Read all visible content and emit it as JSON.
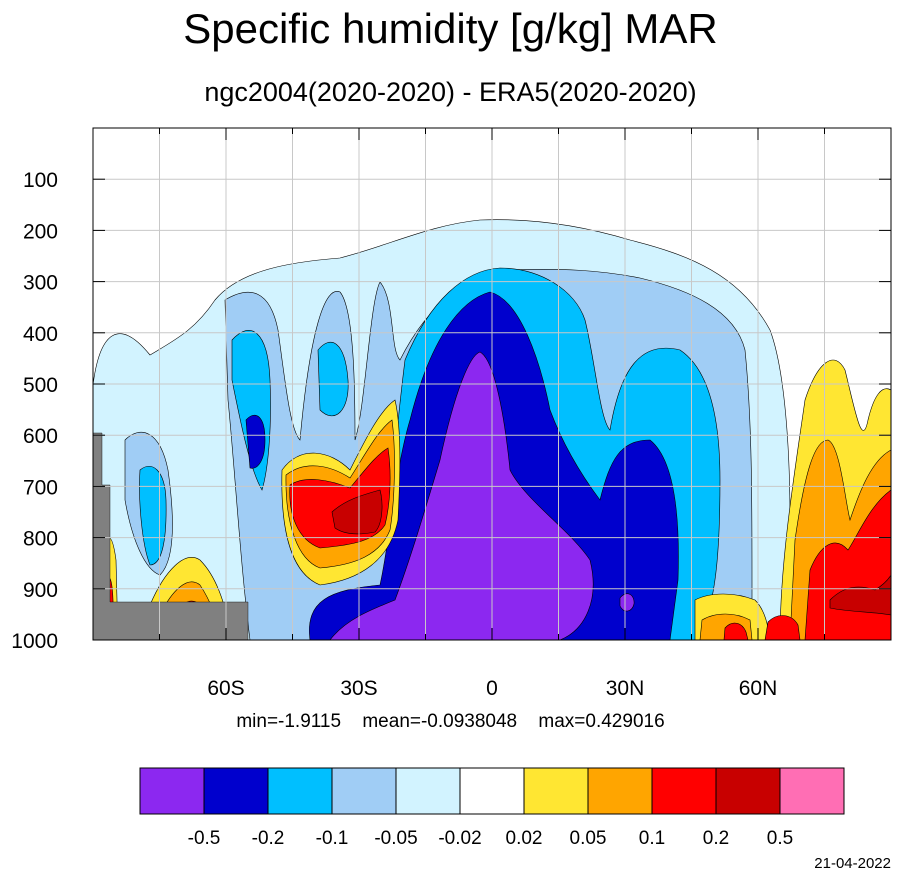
{
  "title": "Specific humidity [g/kg] MAR",
  "subtitle": "ngc2004(2020-2020) - ERA5(2020-2020)",
  "stats": {
    "min_text": "min=-1.9115",
    "mean_text": "mean=-0.0938048",
    "max_text": "max=0.429016"
  },
  "date": "21-04-2022",
  "colors": {
    "land_mask": "#808080",
    "grid": "#c8c8c8",
    "fill_levels": [
      "#8c28f0",
      "#0000cd",
      "#00bfff",
      "#a0cdf5",
      "#d2f3ff",
      "#ffffff",
      "#ffe632",
      "#ffa500",
      "#ff0000",
      "#c80000",
      "#ff6eb4"
    ]
  },
  "chart_data": {
    "type": "heatmap",
    "title": "Specific humidity [g/kg] MAR",
    "subtitle": "ngc2004(2020-2020) - ERA5(2020-2020)",
    "x_axis": {
      "range": [
        -90,
        90
      ],
      "ticks": [
        -60,
        -30,
        0,
        30,
        60
      ],
      "tick_labels": [
        "60S",
        "30S",
        "0",
        "30N",
        "60N"
      ]
    },
    "y_axis": {
      "range": [
        0,
        1000
      ],
      "inverted": true,
      "ticks": [
        100,
        200,
        300,
        400,
        500,
        600,
        700,
        800,
        900,
        1000
      ],
      "tick_labels": [
        "100",
        "200",
        "300",
        "400",
        "500",
        "600",
        "700",
        "800",
        "900",
        "1000"
      ]
    },
    "grid": true,
    "colorbar": {
      "boundaries": [
        "-0.5",
        "-0.2",
        "-0.1",
        "-0.05",
        "-0.02",
        "0.02",
        "0.05",
        "0.1",
        "0.2",
        "0.5"
      ],
      "colors": [
        "#8c28f0",
        "#0000cd",
        "#00bfff",
        "#a0cdf5",
        "#d2f3ff",
        "#ffffff",
        "#ffe632",
        "#ffa500",
        "#ff0000",
        "#c80000",
        "#ff6eb4"
      ]
    },
    "stats": {
      "min": -1.9115,
      "mean": -0.0938048,
      "max": 0.429016
    }
  }
}
